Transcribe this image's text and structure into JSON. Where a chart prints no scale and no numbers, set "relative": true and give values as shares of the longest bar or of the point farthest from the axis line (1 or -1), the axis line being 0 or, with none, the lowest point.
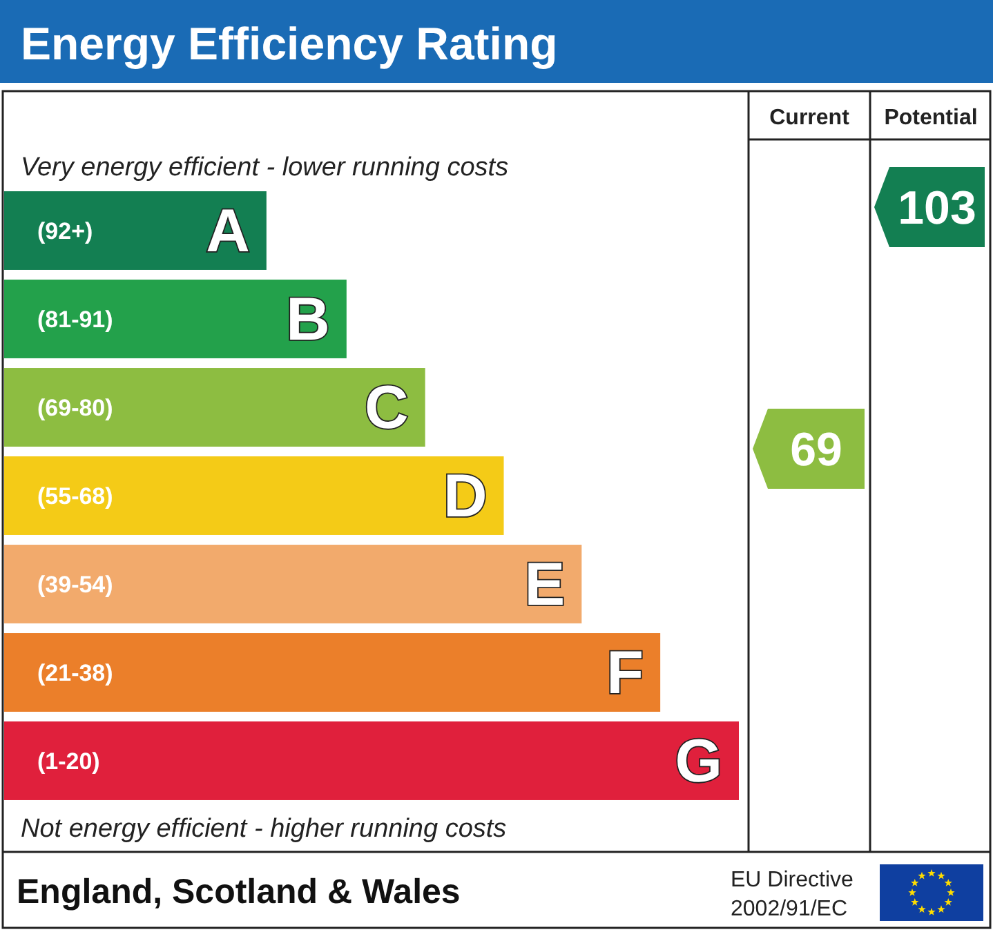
{
  "chart_data": {
    "type": "bar",
    "orientation": "horizontal",
    "relative": true,
    "title": "Energy Efficiency Rating",
    "categories": [
      "A",
      "B",
      "C",
      "D",
      "E",
      "F",
      "G"
    ],
    "values": [
      0.357,
      0.466,
      0.573,
      0.68,
      0.786,
      0.893,
      1
    ],
    "colors": [
      "#137f52",
      "#23a14b",
      "#8dbd41",
      "#f4cb17",
      "#f2aa6c",
      "#eb7f2a",
      "#e0203c"
    ],
    "annotations": [
      "Very energy efficient - lower running costs",
      "Not energy efficient - higher running costs",
      "Current",
      "Potential",
      "England, Scotland & Wales",
      "EU Directive\n2002/91/EC",
      "69",
      "103",
      "(92+)",
      "(81-91)",
      "(69-80)",
      "(55-68)",
      "(39-54)",
      "(21-38)",
      "(1-20)"
    ]
  }
}
